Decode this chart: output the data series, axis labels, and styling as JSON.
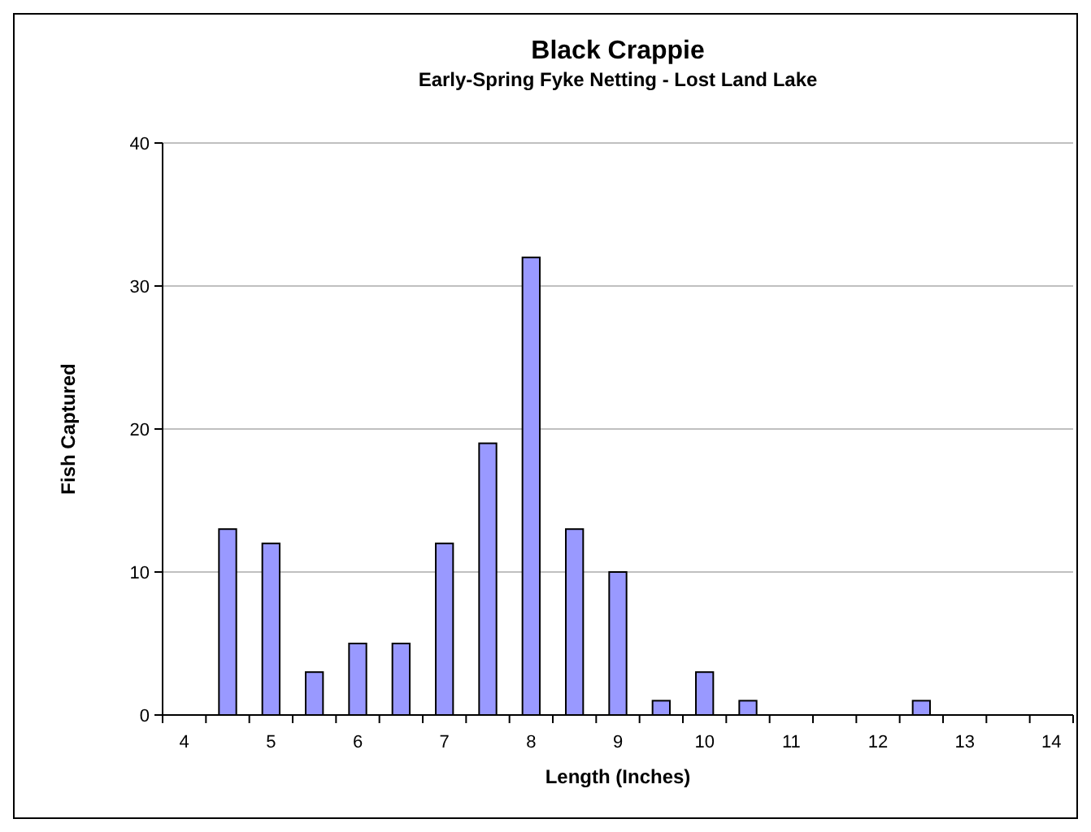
{
  "chart_data": {
    "type": "bar",
    "title": "Black Crappie",
    "subtitle": "Early-Spring Fyke Netting - Lost Land Lake",
    "xlabel": "Length (Inches)",
    "ylabel": "Fish Captured",
    "categories": [
      "4",
      null,
      "5",
      null,
      "6",
      null,
      "7",
      null,
      "8",
      null,
      "9",
      null,
      "10",
      null,
      "11",
      null,
      "12",
      null,
      "13",
      null,
      "14"
    ],
    "values": [
      0,
      13,
      12,
      3,
      5,
      5,
      12,
      19,
      32,
      13,
      10,
      1,
      3,
      1,
      0,
      0,
      0,
      1,
      0,
      0,
      0
    ],
    "color": "#9999ff",
    "ylim": [
      0,
      40
    ],
    "yticks": [
      0,
      10,
      20,
      30,
      40
    ],
    "grid": "y"
  }
}
